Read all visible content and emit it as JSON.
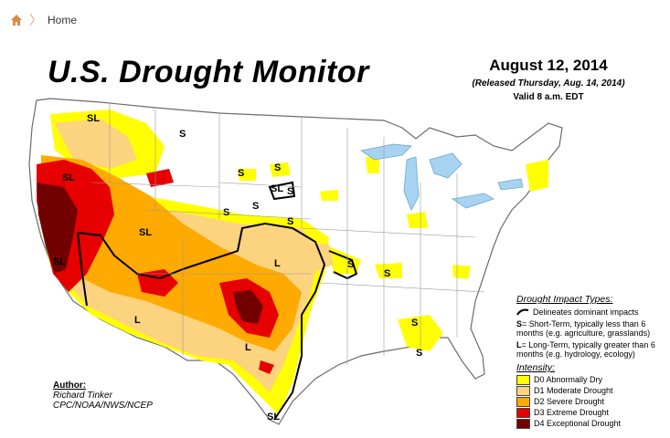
{
  "breadcrumb": {
    "home_label": "Home"
  },
  "header": {
    "title": "U.S. Drought Monitor",
    "date": "August 12, 2014",
    "released": "(Released Thursday, Aug. 14, 2014)",
    "valid": "Valid 8 a.m. EDT"
  },
  "author": {
    "label": "Author:",
    "name": "Richard Tinker",
    "org": "CPC/NOAA/NWS/NCEP"
  },
  "impact_legend": {
    "heading": "Drought Impact Types:",
    "line_label": "Delineates dominant impacts",
    "short_term": {
      "code": "S",
      "text": "= Short-Term, typically less than 6 months (e.g. agriculture, grasslands)"
    },
    "long_term": {
      "code": "L",
      "text": "= Long-Term, typically greater than 6 months (e.g. hydrology, ecology)"
    }
  },
  "intensity_legend": {
    "heading": "Intensity:",
    "items": [
      {
        "label": "D0 Abnormally Dry",
        "color": "#ffff00"
      },
      {
        "label": "D1 Moderate Drought",
        "color": "#fcd37f"
      },
      {
        "label": "D2 Severe Drought",
        "color": "#ffaa00"
      },
      {
        "label": "D3 Extreme Drought",
        "color": "#e60000"
      },
      {
        "label": "D4 Exceptional Drought",
        "color": "#730000"
      }
    ]
  },
  "map_labels": {
    "sl_pnw": "SL",
    "sl_or": "SL",
    "sl_nv": "SL",
    "sl_ca": "SL",
    "s_mt": "S",
    "s_nd1": "S",
    "s_nd2": "S",
    "sl_sd": "SL",
    "s_sd": "S",
    "s_ne1": "S",
    "s_ne2": "S",
    "s_ne3": "S",
    "l_ks": "L",
    "l_az": "L",
    "l_tx": "L",
    "s_mo": "S",
    "s_oh": "S",
    "s_al": "S",
    "s_ga": "S",
    "sl_tx": "SL"
  }
}
